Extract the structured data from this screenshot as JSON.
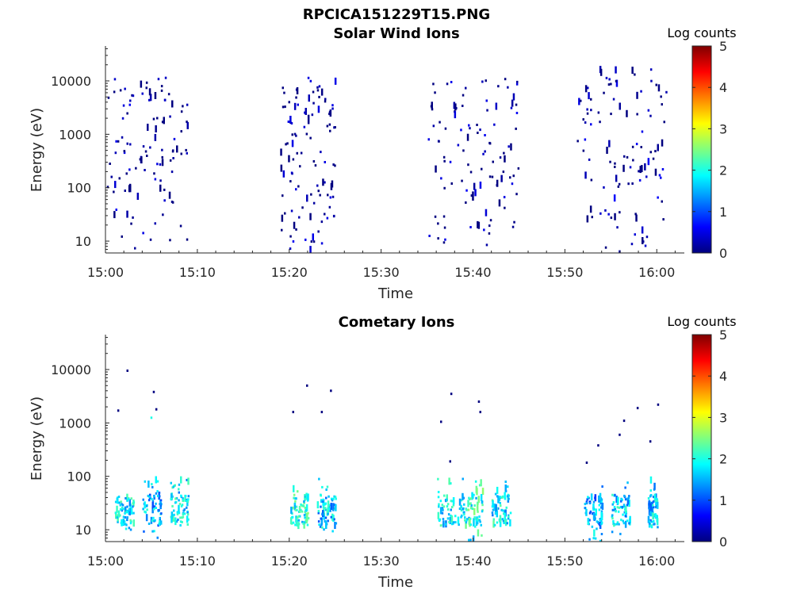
{
  "figure": {
    "title": "RPCICA151229T15.PNG"
  },
  "chart_data": [
    {
      "type": "heatmap",
      "title": "Solar Wind Ions",
      "xlabel": "Time",
      "ylabel": "Energy (eV)",
      "x_scale": "time",
      "y_scale": "log",
      "xlim": [
        "15:00",
        "16:03"
      ],
      "ylim": [
        6,
        45000
      ],
      "x_ticks": [
        "15:00",
        "15:10",
        "15:20",
        "15:30",
        "15:40",
        "15:50",
        "16:00"
      ],
      "y_ticks": [
        10,
        100,
        1000,
        10000
      ],
      "y_tick_labels": [
        "10",
        "100",
        "1000",
        "10000"
      ],
      "colorbar": {
        "label": "Log counts",
        "range": [
          0,
          5
        ],
        "ticks": [
          "0",
          "1",
          "2",
          "3",
          "4",
          "5"
        ],
        "colormap": "jet"
      },
      "bursts": [
        {
          "start": "15:00",
          "end": "15:09",
          "emin": 6,
          "emax": 12000,
          "level": 0
        },
        {
          "start": "15:19",
          "end": "15:25",
          "emin": 6,
          "emax": 12000,
          "level": 0
        },
        {
          "start": "15:35",
          "end": "15:45",
          "emin": 6,
          "emax": 12000,
          "level": 0
        },
        {
          "start": "15:51",
          "end": "16:01",
          "emin": 6,
          "emax": 20000,
          "level": 0
        }
      ]
    },
    {
      "type": "heatmap",
      "title": "Cometary Ions",
      "xlabel": "Time",
      "ylabel": "Energy (eV)",
      "x_scale": "time",
      "y_scale": "log",
      "xlim": [
        "15:00",
        "16:03"
      ],
      "ylim": [
        6,
        45000
      ],
      "x_ticks": [
        "15:00",
        "15:10",
        "15:20",
        "15:30",
        "15:40",
        "15:50",
        "16:00"
      ],
      "y_ticks": [
        10,
        100,
        1000,
        10000
      ],
      "y_tick_labels": [
        "10",
        "100",
        "1000",
        "10000"
      ],
      "colorbar": {
        "label": "Log counts",
        "range": [
          0,
          5
        ],
        "ticks": [
          "0",
          "1",
          "2",
          "3",
          "4",
          "5"
        ],
        "colormap": "jet"
      },
      "bursts": [
        {
          "start": "15:01",
          "end": "15:03",
          "emin": 10,
          "emax": 45,
          "level": 1.8
        },
        {
          "start": "15:04",
          "end": "15:06",
          "emin": 7,
          "emax": 90,
          "level": 1.5
        },
        {
          "start": "15:07",
          "end": "15:09",
          "emin": 12,
          "emax": 90,
          "level": 1.8
        },
        {
          "start": "15:20",
          "end": "15:22",
          "emin": 12,
          "emax": 90,
          "level": 2.0
        },
        {
          "start": "15:23",
          "end": "15:25",
          "emin": 6,
          "emax": 90,
          "level": 1.6
        },
        {
          "start": "15:36",
          "end": "15:39",
          "emin": 10,
          "emax": 90,
          "level": 1.8
        },
        {
          "start": "15:39",
          "end": "15:41",
          "emin": 6,
          "emax": 90,
          "level": 2.0
        },
        {
          "start": "15:42",
          "end": "15:44",
          "emin": 10,
          "emax": 90,
          "level": 1.8
        },
        {
          "start": "15:52",
          "end": "15:54",
          "emin": 6,
          "emax": 90,
          "level": 1.4
        },
        {
          "start": "15:55",
          "end": "15:57",
          "emin": 8,
          "emax": 90,
          "level": 1.7
        },
        {
          "start": "15:59",
          "end": "16:00",
          "emin": 10,
          "emax": 90,
          "level": 1.6
        }
      ],
      "sparse_points": [
        {
          "time": "15:01",
          "energy": 1700,
          "level": 0
        },
        {
          "time": "15:02",
          "energy": 9500,
          "level": 0
        },
        {
          "time": "15:04",
          "energy": 1250,
          "level": 2
        },
        {
          "time": "15:05",
          "energy": 1800,
          "level": 0
        },
        {
          "time": "15:05",
          "energy": 3800,
          "level": 0
        },
        {
          "time": "15:20",
          "energy": 1600,
          "level": 0
        },
        {
          "time": "15:21",
          "energy": 5000,
          "level": 0
        },
        {
          "time": "15:23",
          "energy": 1600,
          "level": 0
        },
        {
          "time": "15:24",
          "energy": 4000,
          "level": 0
        },
        {
          "time": "15:36",
          "energy": 1050,
          "level": 0
        },
        {
          "time": "15:37",
          "energy": 3500,
          "level": 0
        },
        {
          "time": "15:37",
          "energy": 190,
          "level": 0
        },
        {
          "time": "15:40",
          "energy": 2500,
          "level": 0
        },
        {
          "time": "15:40",
          "energy": 1600,
          "level": 0
        },
        {
          "time": "15:52",
          "energy": 180,
          "level": 0
        },
        {
          "time": "15:53",
          "energy": 380,
          "level": 0
        },
        {
          "time": "15:55",
          "energy": 600,
          "level": 0
        },
        {
          "time": "15:56",
          "energy": 1100,
          "level": 0
        },
        {
          "time": "15:57",
          "energy": 1900,
          "level": 0
        },
        {
          "time": "15:59",
          "energy": 450,
          "level": 0
        },
        {
          "time": "16:00",
          "energy": 2200,
          "level": 0
        }
      ]
    }
  ]
}
